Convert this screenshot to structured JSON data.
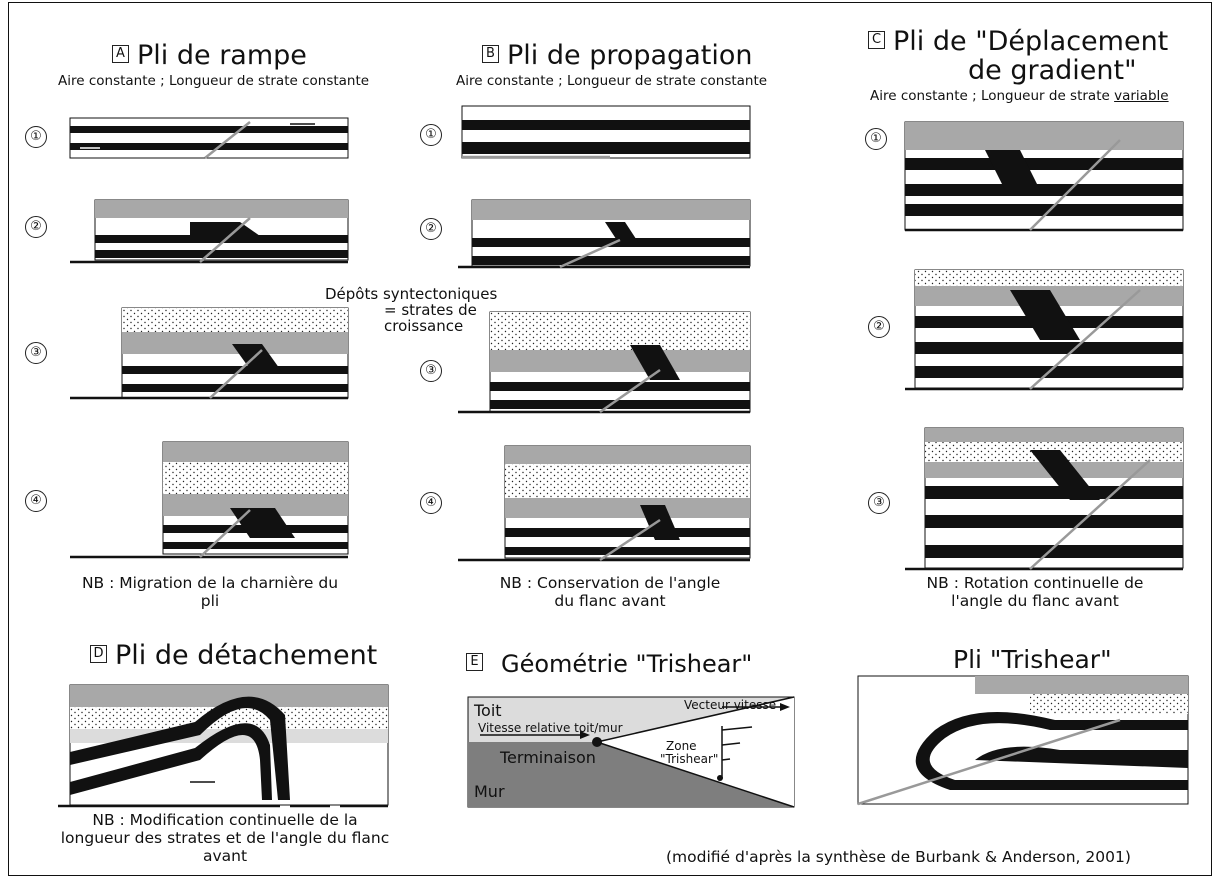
{
  "panels": {
    "A": {
      "letter": "A",
      "title": "Pli de rampe",
      "subtitle": "Aire constante ; Longueur de strate constante",
      "note": "NB : Migration de la charnière du pli"
    },
    "B": {
      "letter": "B",
      "title": "Pli de propagation",
      "subtitle": "Aire constante ; Longueur de strate constante",
      "note": "NB : Conservation de l'angle du flanc avant"
    },
    "C": {
      "letter": "C",
      "title_line1": "Pli de \"Déplacement",
      "title_line2": "de gradient\"",
      "subtitle_prefix": "Aire constante ; Longueur de strate ",
      "subtitle_underlined": "variable",
      "note": "NB : Rotation continuelle de l'angle du flanc avant"
    },
    "D": {
      "letter": "D",
      "title": "Pli de détachement",
      "note": "NB : Modification continuelle de la longueur des strates et de l'angle du flanc avant"
    },
    "E": {
      "letter": "E",
      "title": "Géométrie \"Trishear\"",
      "labels": {
        "toit": "Toit",
        "mur": "Mur",
        "terminaison": "Terminaison",
        "vitesse_relative": "Vitesse relative toit/mur",
        "vecteur": "Vecteur vitesse",
        "zone_l1": "Zone",
        "zone_l2": "\"Trishear\""
      }
    },
    "F": {
      "title": "Pli \"Trishear\""
    }
  },
  "steps": [
    "①",
    "②",
    "③",
    "④"
  ],
  "annotation": {
    "line1": "Dépôts syntectoniques",
    "line2": "= strates de",
    "line3": "croissance"
  },
  "source": "(modifié d'après la synthèse de Burbank & Anderson, 2001)",
  "colors": {
    "dark": "#111111",
    "grey": "#a8a8a8",
    "light_grey": "#dcdcdc",
    "mur_grey": "#7e7e7e"
  }
}
